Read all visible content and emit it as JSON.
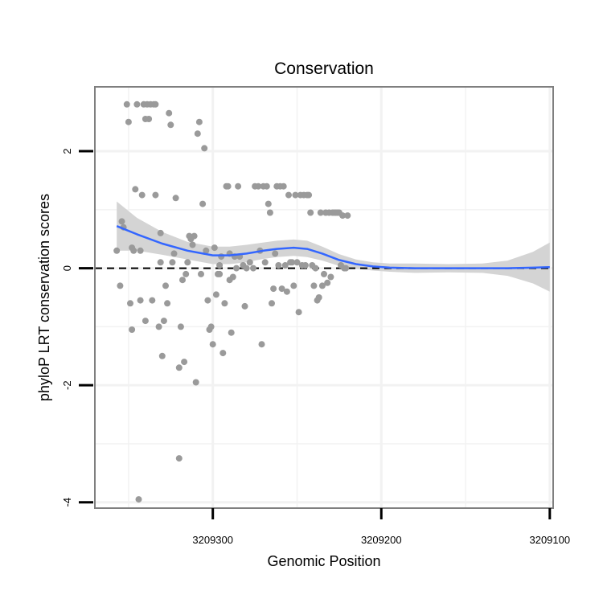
{
  "chart_data": {
    "type": "scatter",
    "title": "Conservation",
    "xlabel": "Genomic Position",
    "ylabel": "phyloP LRT conservation scores",
    "x_reversed": true,
    "xlim": [
      3209370,
      3209098
    ],
    "ylim": [
      -4.1,
      3.1
    ],
    "x_ticks": [
      3209300,
      3209200,
      3209100
    ],
    "x_tick_labels": [
      "3209300",
      "3209200",
      "3209100"
    ],
    "y_ticks": [
      -4,
      -2,
      0,
      2
    ],
    "y_tick_labels": [
      "-4",
      "-2",
      "0",
      "2"
    ],
    "reference_line": {
      "y": 0,
      "style": "dashed"
    },
    "colors": {
      "points": "#9a9a9a",
      "smooth": "#3366ff",
      "ribbon": "#d4d4d4",
      "panel_border": "#7f7f7f",
      "grid": "#f2f2f2"
    },
    "points": [
      [
        3209357,
        0.3
      ],
      [
        3209355,
        -0.3
      ],
      [
        3209354,
        0.8
      ],
      [
        3209353,
        0.7
      ],
      [
        3209351,
        2.8
      ],
      [
        3209350,
        2.5
      ],
      [
        3209349,
        -0.6
      ],
      [
        3209348,
        -1.05
      ],
      [
        3209348,
        0.35
      ],
      [
        3209347,
        0.3
      ],
      [
        3209346,
        1.35
      ],
      [
        3209345,
        2.8
      ],
      [
        3209344,
        -3.95
      ],
      [
        3209343,
        0.3
      ],
      [
        3209343,
        -0.55
      ],
      [
        3209342,
        1.25
      ],
      [
        3209341,
        2.8
      ],
      [
        3209340,
        -0.9
      ],
      [
        3209340,
        2.55
      ],
      [
        3209339,
        2.8
      ],
      [
        3209338,
        2.55
      ],
      [
        3209337,
        2.8
      ],
      [
        3209336,
        -0.55
      ],
      [
        3209335,
        2.8
      ],
      [
        3209334,
        2.8
      ],
      [
        3209334,
        1.25
      ],
      [
        3209332,
        -1.0
      ],
      [
        3209331,
        0.6
      ],
      [
        3209331,
        0.1
      ],
      [
        3209330,
        -1.5
      ],
      [
        3209329,
        -0.9
      ],
      [
        3209328,
        -0.3
      ],
      [
        3209327,
        -0.6
      ],
      [
        3209326,
        2.65
      ],
      [
        3209325,
        2.45
      ],
      [
        3209324,
        0.1
      ],
      [
        3209323,
        0.25
      ],
      [
        3209322,
        1.2
      ],
      [
        3209320,
        -3.25
      ],
      [
        3209320,
        -1.7
      ],
      [
        3209319,
        -1.0
      ],
      [
        3209318,
        -0.2
      ],
      [
        3209317,
        -1.6
      ],
      [
        3209316,
        -0.1
      ],
      [
        3209315,
        0.1
      ],
      [
        3209314,
        0.55
      ],
      [
        3209313,
        0.5
      ],
      [
        3209312,
        0.4
      ],
      [
        3209311,
        0.55
      ],
      [
        3209310,
        -1.95
      ],
      [
        3209309,
        2.3
      ],
      [
        3209308,
        2.5
      ],
      [
        3209307,
        -0.1
      ],
      [
        3209306,
        1.1
      ],
      [
        3209305,
        2.05
      ],
      [
        3209304,
        0.3
      ],
      [
        3209303,
        -0.55
      ],
      [
        3209302,
        -1.05
      ],
      [
        3209301,
        -1.0
      ],
      [
        3209300,
        -1.3
      ],
      [
        3209299,
        0.35
      ],
      [
        3209298,
        -0.45
      ],
      [
        3209297,
        -0.1
      ],
      [
        3209296,
        0.05
      ],
      [
        3209296,
        -0.1
      ],
      [
        3209295,
        0.2
      ],
      [
        3209294,
        -1.45
      ],
      [
        3209293,
        -0.6
      ],
      [
        3209292,
        1.4
      ],
      [
        3209291,
        1.4
      ],
      [
        3209290,
        0.25
      ],
      [
        3209290,
        -0.2
      ],
      [
        3209289,
        -1.1
      ],
      [
        3209288,
        -0.15
      ],
      [
        3209287,
        0.2
      ],
      [
        3209286,
        0.0
      ],
      [
        3209285,
        1.4
      ],
      [
        3209284,
        0.2
      ],
      [
        3209282,
        0.05
      ],
      [
        3209281,
        -0.65
      ],
      [
        3209280,
        0.0
      ],
      [
        3209278,
        0.1
      ],
      [
        3209276,
        0.0
      ],
      [
        3209275,
        1.4
      ],
      [
        3209273,
        1.4
      ],
      [
        3209272,
        0.3
      ],
      [
        3209271,
        -1.3
      ],
      [
        3209270,
        1.4
      ],
      [
        3209269,
        0.1
      ],
      [
        3209268,
        1.4
      ],
      [
        3209267,
        1.1
      ],
      [
        3209266,
        0.95
      ],
      [
        3209265,
        -0.6
      ],
      [
        3209264,
        -0.35
      ],
      [
        3209263,
        0.25
      ],
      [
        3209262,
        1.4
      ],
      [
        3209261,
        0.05
      ],
      [
        3209260,
        1.4
      ],
      [
        3209259,
        -0.35
      ],
      [
        3209258,
        1.4
      ],
      [
        3209257,
        0.05
      ],
      [
        3209256,
        -0.4
      ],
      [
        3209255,
        1.25
      ],
      [
        3209254,
        0.1
      ],
      [
        3209253,
        0.1
      ],
      [
        3209252,
        -0.3
      ],
      [
        3209251,
        1.25
      ],
      [
        3209250,
        0.1
      ],
      [
        3209249,
        -0.75
      ],
      [
        3209248,
        1.25
      ],
      [
        3209247,
        0.05
      ],
      [
        3209246,
        1.25
      ],
      [
        3209245,
        0.05
      ],
      [
        3209244,
        1.25
      ],
      [
        3209243,
        1.25
      ],
      [
        3209242,
        0.95
      ],
      [
        3209241,
        0.05
      ],
      [
        3209240,
        -0.3
      ],
      [
        3209239,
        0.0
      ],
      [
        3209238,
        -0.55
      ],
      [
        3209237,
        -0.5
      ],
      [
        3209236,
        0.95
      ],
      [
        3209235,
        -0.3
      ],
      [
        3209234,
        -0.1
      ],
      [
        3209233,
        0.95
      ],
      [
        3209232,
        -0.25
      ],
      [
        3209231,
        0.95
      ],
      [
        3209230,
        -0.15
      ],
      [
        3209229,
        0.95
      ],
      [
        3209228,
        0.95
      ],
      [
        3209227,
        0.95
      ],
      [
        3209226,
        0.95
      ],
      [
        3209225,
        0.95
      ],
      [
        3209224,
        0.05
      ],
      [
        3209223,
        0.9
      ],
      [
        3209222,
        0.0
      ],
      [
        3209221,
        0.0
      ],
      [
        3209220,
        0.9
      ]
    ],
    "smooth": [
      [
        3209357,
        0.72
      ],
      [
        3209345,
        0.58
      ],
      [
        3209330,
        0.42
      ],
      [
        3209315,
        0.3
      ],
      [
        3209300,
        0.22
      ],
      [
        3209290,
        0.22
      ],
      [
        3209280,
        0.25
      ],
      [
        3209270,
        0.3
      ],
      [
        3209262,
        0.33
      ],
      [
        3209252,
        0.35
      ],
      [
        3209244,
        0.33
      ],
      [
        3209235,
        0.25
      ],
      [
        3209225,
        0.14
      ],
      [
        3209215,
        0.07
      ],
      [
        3209205,
        0.03
      ],
      [
        3209195,
        0.01
      ],
      [
        3209180,
        0.0
      ],
      [
        3209160,
        0.0
      ],
      [
        3209140,
        0.0
      ],
      [
        3209125,
        0.0
      ],
      [
        3209110,
        0.01
      ],
      [
        3209100,
        0.02
      ]
    ],
    "ribbon_upper": [
      [
        3209357,
        1.14
      ],
      [
        3209345,
        0.86
      ],
      [
        3209330,
        0.62
      ],
      [
        3209315,
        0.45
      ],
      [
        3209300,
        0.37
      ],
      [
        3209290,
        0.37
      ],
      [
        3209280,
        0.4
      ],
      [
        3209270,
        0.44
      ],
      [
        3209262,
        0.47
      ],
      [
        3209252,
        0.49
      ],
      [
        3209244,
        0.47
      ],
      [
        3209235,
        0.37
      ],
      [
        3209225,
        0.24
      ],
      [
        3209215,
        0.15
      ],
      [
        3209205,
        0.1
      ],
      [
        3209195,
        0.08
      ],
      [
        3209180,
        0.08
      ],
      [
        3209160,
        0.07
      ],
      [
        3209140,
        0.08
      ],
      [
        3209125,
        0.13
      ],
      [
        3209110,
        0.28
      ],
      [
        3209100,
        0.44
      ]
    ],
    "ribbon_lower": [
      [
        3209357,
        0.3
      ],
      [
        3209345,
        0.3
      ],
      [
        3209330,
        0.23
      ],
      [
        3209315,
        0.15
      ],
      [
        3209300,
        0.07
      ],
      [
        3209290,
        0.07
      ],
      [
        3209280,
        0.1
      ],
      [
        3209270,
        0.16
      ],
      [
        3209262,
        0.19
      ],
      [
        3209252,
        0.21
      ],
      [
        3209244,
        0.19
      ],
      [
        3209235,
        0.13
      ],
      [
        3209225,
        0.04
      ],
      [
        3209215,
        -0.01
      ],
      [
        3209205,
        -0.04
      ],
      [
        3209195,
        -0.06
      ],
      [
        3209180,
        -0.08
      ],
      [
        3209160,
        -0.07
      ],
      [
        3209140,
        -0.08
      ],
      [
        3209125,
        -0.13
      ],
      [
        3209110,
        -0.26
      ],
      [
        3209100,
        -0.4
      ]
    ]
  }
}
